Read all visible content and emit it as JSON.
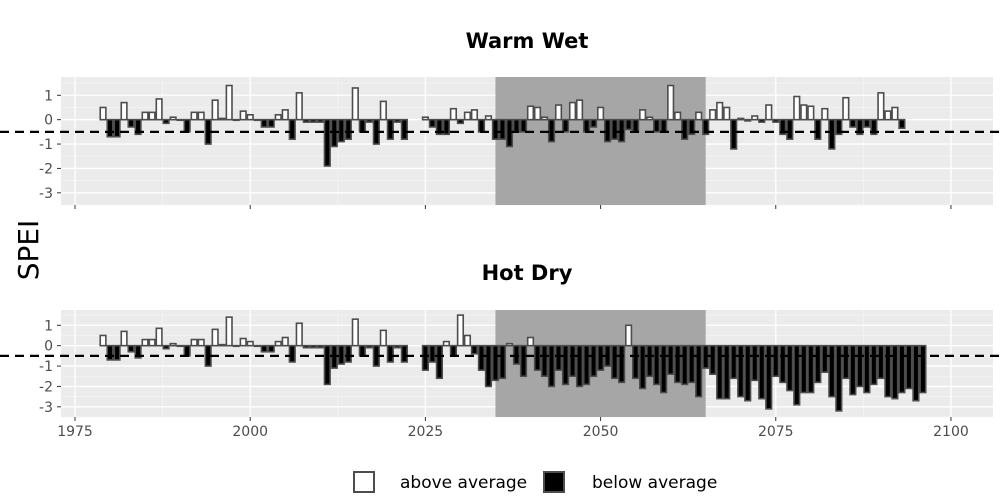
{
  "chart_data": {
    "type": "bar",
    "ylabel": "SPEI",
    "xticks": [
      1975,
      2000,
      2025,
      2050,
      2075,
      2100
    ],
    "yticks": [
      1,
      0,
      -1,
      -2,
      -3
    ],
    "ylim": [
      -3.5,
      1.75
    ],
    "xlim": [
      1973,
      2106
    ],
    "threshold": -0.5,
    "highlight_range": [
      2035,
      2065
    ],
    "legend": {
      "above": "above average",
      "below": "below average"
    },
    "colors": {
      "above_fill": "#ffffff",
      "below_fill": "#000000",
      "bar_stroke": "#4d4d4d",
      "panel_bg": "#ebebeb",
      "grid": "#ffffff",
      "highlight": "#a6a6a6"
    },
    "panels": [
      {
        "title": "Warm Wet",
        "start_year": 1979,
        "values": [
          0.5,
          -0.7,
          -0.7,
          0.7,
          -0.3,
          -0.6,
          0.3,
          0.3,
          0.85,
          -0.15,
          0.1,
          0,
          -0.5,
          0.3,
          0.3,
          -1,
          0.8,
          0.05,
          1.4,
          0,
          0.35,
          0.2,
          0,
          -0.3,
          -0.3,
          0.2,
          0.4,
          -0.8,
          1.1,
          -0.1,
          -0.1,
          -0.1,
          -1.9,
          -1.1,
          -0.9,
          -0.8,
          1.3,
          -0.5,
          -0.1,
          -1,
          0.75,
          -0.8,
          -0.1,
          -0.8,
          null,
          null,
          0.1,
          -0.3,
          -0.6,
          -0.6,
          0.45,
          -0.15,
          0.3,
          0.4,
          -0.5,
          0.15,
          -0.8,
          -0.8,
          -1.1,
          -0.5,
          -0.5,
          0.55,
          0.5,
          0.1,
          -0.9,
          0.6,
          -0.5,
          0.7,
          0.8,
          -0.5,
          -0.3,
          0.5,
          -0.9,
          -0.8,
          -0.9,
          -0.4,
          -0.5,
          0.4,
          0.1,
          -0.5,
          -0.5,
          1.4,
          0.3,
          -0.8,
          -0.6,
          0.3,
          -0.6,
          0.4,
          0.7,
          0.5,
          -1.2,
          0.05,
          -0.05,
          0.15,
          -0.1,
          0.6,
          -0.1,
          -0.6,
          -0.8,
          0.95,
          0.6,
          0.55,
          -0.8,
          0.45,
          -1.2,
          -0.6,
          0.9,
          -0.3,
          -0.6,
          -0.3,
          -0.6,
          1.1,
          0.35,
          0.5,
          -0.35
        ]
      },
      {
        "title": "Hot Dry",
        "start_year": 1979,
        "values": [
          0.5,
          -0.7,
          -0.7,
          0.7,
          -0.3,
          -0.6,
          0.3,
          0.3,
          0.85,
          -0.15,
          0.1,
          0,
          -0.5,
          0.3,
          0.3,
          -1,
          0.8,
          0.05,
          1.4,
          0,
          0.35,
          0.2,
          0,
          -0.3,
          -0.3,
          0.2,
          0.4,
          -0.8,
          1.1,
          -0.1,
          -0.1,
          -0.1,
          -1.9,
          -1.1,
          -0.9,
          -0.8,
          1.3,
          -0.5,
          -0.1,
          -1,
          0.75,
          -0.8,
          -0.1,
          -0.8,
          null,
          null,
          -1.2,
          -0.8,
          -1.6,
          0.2,
          -0.5,
          1.5,
          0.5,
          -0.4,
          -1.2,
          -2,
          -1.7,
          -1.6,
          0.1,
          -0.9,
          -1.5,
          0.4,
          -1.2,
          -1.5,
          -2,
          -1.2,
          -1.9,
          -1.5,
          -2,
          -1.9,
          -1.5,
          -1.2,
          -1,
          -1.6,
          -1.8,
          1,
          -1.6,
          -2.1,
          -1.5,
          -1.9,
          -2.3,
          -1.4,
          -1.8,
          -1.9,
          -1.8,
          -2.5,
          -1.1,
          -1.4,
          -2.6,
          -2.6,
          -1.6,
          -2.5,
          -2.7,
          -1.7,
          -2.6,
          -3.1,
          -1.5,
          -1.8,
          -2.2,
          -2.9,
          -2.3,
          -2.3,
          -1.8,
          -1.3,
          -2.5,
          -3.2,
          -1.6,
          -2.4,
          -2,
          -2.3,
          -1.9,
          -1.6,
          -2.5,
          -2.6,
          -2.3,
          -2.1,
          -2.7,
          -2.3
        ]
      }
    ]
  }
}
